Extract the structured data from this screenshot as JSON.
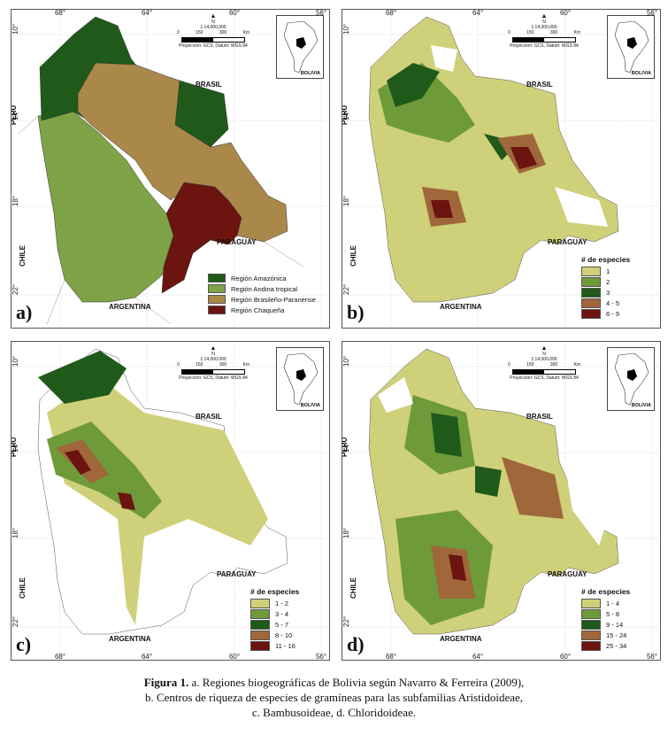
{
  "ticks": {
    "top": [
      "68°",
      "64°",
      "60°",
      "56°"
    ],
    "left": [
      "10°",
      "14°",
      "18°",
      "22°"
    ]
  },
  "countries": {
    "brasil": "BRASIL",
    "peru": "PERU",
    "chile": "CHILE",
    "paraguay": "PARAGUAY",
    "argentina": "ARGENTINA",
    "bolivia": "BOLIVIA"
  },
  "scale": {
    "north": "N",
    "ratio": "1:14,000,000",
    "n0": "0",
    "n1": "150",
    "n2": "300",
    "unit": "Km",
    "projection": "Proyección: GCS, Datum: WGS 84"
  },
  "panels": {
    "a": {
      "letter": "a)",
      "legend": [
        {
          "label": "Región Amazónica",
          "color": "#1f5a1a"
        },
        {
          "label": "Región Andina tropical",
          "color": "#7ea246"
        },
        {
          "label": "Región Brasileño-Paranense",
          "color": "#a9884a"
        },
        {
          "label": "Región Chaqueña",
          "color": "#6b1410"
        }
      ]
    },
    "b": {
      "letter": "b)",
      "legend_title": "# de especies",
      "legend": [
        {
          "label": "1",
          "color": "#cfd07a"
        },
        {
          "label": "2",
          "color": "#6e9a3a"
        },
        {
          "label": "3",
          "color": "#1f5a1a"
        },
        {
          "label": "4 - 5",
          "color": "#a0673a"
        },
        {
          "label": "6 - 9",
          "color": "#6b1410"
        }
      ]
    },
    "c": {
      "letter": "c)",
      "legend_title": "# de especies",
      "legend": [
        {
          "label": "1 - 2",
          "color": "#cfd07a"
        },
        {
          "label": "3 - 4",
          "color": "#6e9a3a"
        },
        {
          "label": "5 - 7",
          "color": "#1f5a1a"
        },
        {
          "label": "8 - 10",
          "color": "#a0673a"
        },
        {
          "label": "11 - 16",
          "color": "#6b1410"
        }
      ]
    },
    "d": {
      "letter": "d)",
      "legend_title": "# de especies",
      "legend": [
        {
          "label": "1 - 4",
          "color": "#cfd07a"
        },
        {
          "label": "5 - 8",
          "color": "#6e9a3a"
        },
        {
          "label": "9 - 14",
          "color": "#1f5a1a"
        },
        {
          "label": "15 - 24",
          "color": "#a0673a"
        },
        {
          "label": "25 - 34",
          "color": "#6b1410"
        }
      ]
    }
  },
  "caption": {
    "fig": "Figura 1.",
    "line1": " a. Regiones biogeográficas de Bolivia según Navarro & Ferreira (2009),",
    "line2": "b. Centros de riqueza de especies de gramíneas para las subfamilias Aristidoideae,",
    "line3": "c. Bambusoideae, d. Chloridoideae."
  }
}
